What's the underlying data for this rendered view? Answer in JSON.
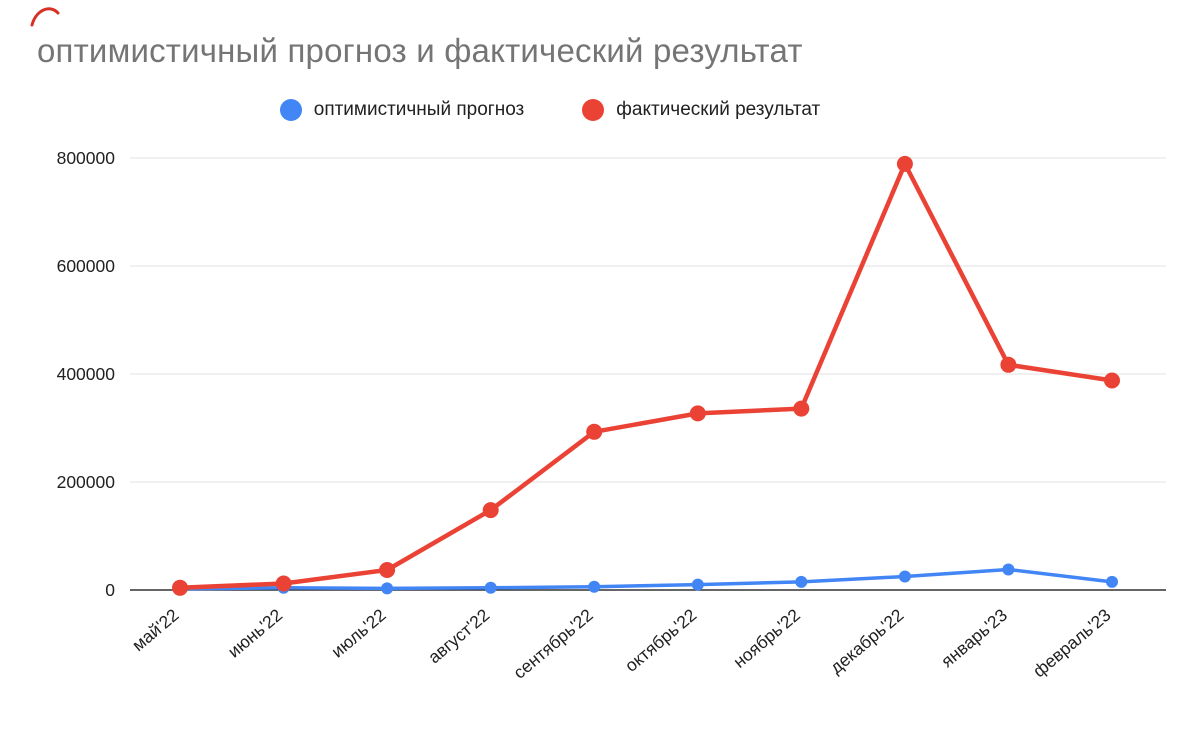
{
  "chart": {
    "title": "оптимистичный прогноз и фактический результат"
  },
  "chart_data": {
    "type": "line",
    "title": "оптимистичный прогноз и фактический результат",
    "categories": [
      "май'22",
      "июнь'22",
      "июль'22",
      "август'22",
      "сентябрь'22",
      "октябрь'22",
      "ноябрь'22",
      "декабрь'22",
      "январь'23",
      "февраль'23"
    ],
    "series": [
      {
        "name": "оптимистичный прогноз",
        "color": "#4285F4",
        "values": [
          2000,
          4000,
          3000,
          4000,
          6000,
          10000,
          15000,
          25000,
          38000,
          15000
        ]
      },
      {
        "name": "фактический результат",
        "color": "#EA4335",
        "values": [
          4000,
          12000,
          37000,
          148000,
          293000,
          327000,
          336000,
          789000,
          417000,
          388000
        ]
      }
    ],
    "xlabel": "",
    "ylabel": "",
    "ylim": [
      0,
      800000
    ],
    "yticks": [
      0,
      200000,
      400000,
      600000,
      800000
    ],
    "grid": true,
    "legend_position": "top"
  },
  "colors": {
    "background": "#ffffff",
    "title_text": "#757575",
    "axis_text": "#212121",
    "gridline": "#e6e6e6",
    "baseline": "#333333",
    "scribble": "#d93025"
  }
}
